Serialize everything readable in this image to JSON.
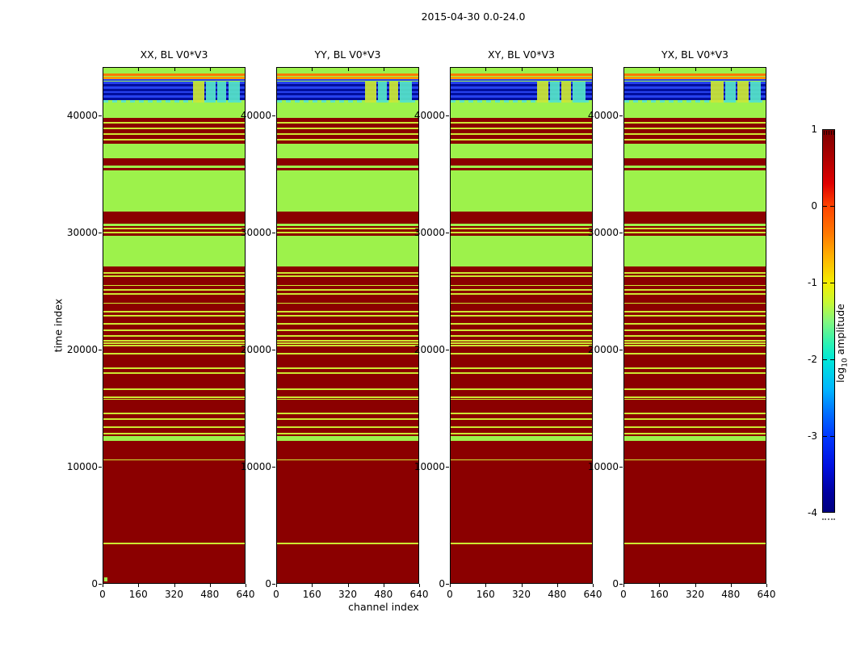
{
  "title": "2015-04-30 0.0-24.0",
  "axes": {
    "xlabel": "channel index",
    "ylabel": "time index"
  },
  "colorbar": {
    "label_pre": "log",
    "label_sub": "10",
    "label_post": " amplitude",
    "tick_labels": [
      "1",
      "0",
      "-1",
      "-2",
      "-3",
      "-4"
    ]
  },
  "chart_data": {
    "type": "heatmap",
    "title": "2015-04-30 0.0-24.0",
    "xlabel": "channel index",
    "ylabel": "time index",
    "x_ticks": [
      0,
      160,
      320,
      480,
      640
    ],
    "y_ticks": [
      0,
      10000,
      20000,
      30000,
      40000
    ],
    "xlim": [
      0,
      640
    ],
    "ylim": [
      0,
      44100
    ],
    "colormap": "jet",
    "value_label": "log10 amplitude",
    "clim": [
      -4,
      1
    ],
    "legend_position": "right-colorbar",
    "grid": false,
    "colors": {
      "green": "#9df24b",
      "maroon": "#8b0000",
      "orange1": "#ff7a00",
      "orange2": "#ff9800",
      "blue_dark": "#000f9e",
      "blue": "#2742ef",
      "cyan_block": "#55e4c8",
      "yellow": "#cde832"
    },
    "panels": [
      {
        "title": "XX, BL V0*V3",
        "origin_dot": true,
        "blocks": [
          [
            0.635,
            0.715,
            "Y"
          ],
          [
            0.728,
            0.795,
            "C"
          ],
          [
            0.808,
            0.868,
            "C"
          ],
          [
            0.888,
            0.965,
            "C"
          ]
        ]
      },
      {
        "title": "YY, BL V0*V3",
        "origin_dot": false,
        "blocks": [
          [
            0.62,
            0.7,
            "Y"
          ],
          [
            0.712,
            0.78,
            "C"
          ],
          [
            0.792,
            0.858,
            "Y"
          ],
          [
            0.87,
            0.955,
            "C"
          ]
        ]
      },
      {
        "title": "XY, BL V0*V3",
        "origin_dot": false,
        "blocks": [
          [
            0.61,
            0.69,
            "Y"
          ],
          [
            0.702,
            0.772,
            "C"
          ],
          [
            0.784,
            0.85,
            "Y"
          ],
          [
            0.862,
            0.955,
            "C"
          ]
        ]
      },
      {
        "title": "YX, BL V0*V3",
        "origin_dot": false,
        "blocks": [
          [
            0.61,
            0.7,
            "Y"
          ],
          [
            0.712,
            0.79,
            "C"
          ],
          [
            0.802,
            0.88,
            "Y"
          ],
          [
            0.892,
            0.968,
            "C"
          ]
        ]
      }
    ],
    "stripes": [
      [
        0.0109,
        0.0042,
        "o1"
      ],
      [
        0.0172,
        0.0042,
        "o2"
      ],
      [
        0.0227,
        0.0023,
        "b2"
      ],
      [
        0.0273,
        0.0044,
        "b2"
      ],
      [
        0.0317,
        0.0044,
        "b1"
      ],
      [
        0.0361,
        0.0044,
        "b2"
      ],
      [
        0.0405,
        0.0044,
        "b1"
      ],
      [
        0.0449,
        0.0044,
        "b2"
      ],
      [
        0.0493,
        0.0044,
        "b1"
      ],
      [
        0.0537,
        0.0044,
        "b2"
      ],
      [
        0.0581,
        0.0044,
        "b1"
      ],
      [
        0.0625,
        0.0047,
        "cy"
      ],
      [
        0.0969,
        0.0078,
        "m"
      ],
      [
        0.1047,
        0.0031,
        "y"
      ],
      [
        0.1078,
        0.0078,
        "m"
      ],
      [
        0.1156,
        0.0031,
        "y"
      ],
      [
        0.1188,
        0.0078,
        "m"
      ],
      [
        0.1266,
        0.0031,
        "y"
      ],
      [
        0.1297,
        0.0078,
        "m"
      ],
      [
        0.1375,
        0.0031,
        "y"
      ],
      [
        0.1406,
        0.0063,
        "m"
      ],
      [
        0.175,
        0.0141,
        "m"
      ],
      [
        0.1938,
        0.0047,
        "m"
      ],
      [
        0.2797,
        0.0234,
        "m"
      ],
      [
        0.3078,
        0.0031,
        "m"
      ],
      [
        0.3109,
        0.0031,
        "y"
      ],
      [
        0.3141,
        0.0047,
        "m"
      ],
      [
        0.3188,
        0.0031,
        "y"
      ],
      [
        0.3219,
        0.0047,
        "m"
      ],
      [
        0.3859,
        0.3281,
        "m"
      ],
      [
        0.3969,
        0.0027,
        "y"
      ],
      [
        0.4028,
        0.0027,
        "y"
      ],
      [
        0.4211,
        0.0027,
        "y"
      ],
      [
        0.4297,
        0.0027,
        "y"
      ],
      [
        0.4375,
        0.0027,
        "y"
      ],
      [
        0.4555,
        0.0027,
        "y"
      ],
      [
        0.4719,
        0.0027,
        "y"
      ],
      [
        0.4797,
        0.0027,
        "y"
      ],
      [
        0.4953,
        0.0027,
        "y"
      ],
      [
        0.5078,
        0.0027,
        "y"
      ],
      [
        0.5188,
        0.0027,
        "y"
      ],
      [
        0.5289,
        0.0027,
        "y"
      ],
      [
        0.5336,
        0.0027,
        "y"
      ],
      [
        0.5383,
        0.0027,
        "y"
      ],
      [
        0.5539,
        0.0027,
        "y"
      ],
      [
        0.582,
        0.0027,
        "y"
      ],
      [
        0.5914,
        0.0027,
        "y"
      ],
      [
        0.6227,
        0.0027,
        "y"
      ],
      [
        0.6383,
        0.0027,
        "y"
      ],
      [
        0.6422,
        0.0027,
        "y"
      ],
      [
        0.6695,
        0.0027,
        "y"
      ],
      [
        0.6805,
        0.0027,
        "y"
      ],
      [
        0.6961,
        0.0027,
        "y"
      ],
      [
        0.7086,
        0.0027,
        "y"
      ],
      [
        0.7141,
        0.0102,
        "g"
      ],
      [
        0.7243,
        0.0352,
        "m"
      ],
      [
        0.7595,
        0.0027,
        "y"
      ],
      [
        0.7622,
        0.1597,
        "m"
      ],
      [
        0.9219,
        0.0031,
        "y"
      ],
      [
        0.925,
        0.075,
        "m"
      ]
    ]
  }
}
